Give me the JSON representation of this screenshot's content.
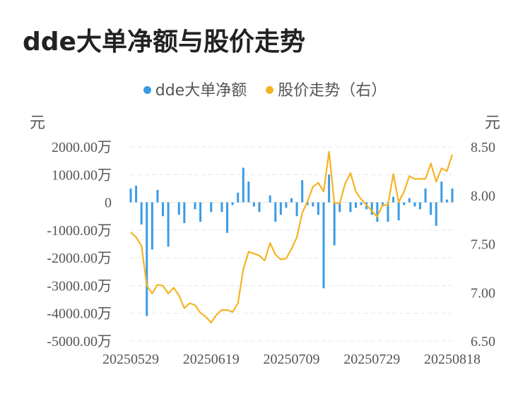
{
  "title": "dde大单净额与股价走势",
  "legend": {
    "left_label": "dde大单净额",
    "right_label": "股价走势（右）"
  },
  "units": {
    "left": "元",
    "right": "元"
  },
  "colors": {
    "bar": "#3a9be6",
    "line": "#f5b324",
    "grid": "#e6e6e6"
  },
  "chart_data": {
    "type": "bar+line",
    "title": "dde大单净额与股价走势",
    "left_axis": {
      "unit": "元",
      "ylim": [
        -5000,
        2000
      ],
      "ticks": [
        2000,
        1000,
        0,
        -1000,
        -2000,
        -3000,
        -4000,
        -5000
      ],
      "tick_labels": [
        "2000.00万",
        "1000.00万",
        "0",
        "-1000.00万",
        "-2000.00万",
        "-3000.00万",
        "-4000.00万",
        "-5000.00万"
      ]
    },
    "right_axis": {
      "unit": "元",
      "ylim": [
        6.5,
        8.5
      ],
      "ticks": [
        8.5,
        8.0,
        7.5,
        7.0,
        6.5
      ],
      "tick_labels": [
        "8.50",
        "8.00",
        "7.50",
        "7.00",
        "6.50"
      ]
    },
    "x_tick_labels": [
      "20250529",
      "20250619",
      "20250709",
      "20250729",
      "20250818"
    ],
    "x_tick_indices": [
      0,
      15,
      30,
      45,
      60
    ],
    "grid": true,
    "legend_position": "top-center",
    "series": [
      {
        "name": "dde大单净额",
        "type": "bar",
        "axis": "left",
        "unit": "万元",
        "values": [
          500,
          600,
          -800,
          -4100,
          -1700,
          450,
          -500,
          -1600,
          0,
          -450,
          -750,
          0,
          -250,
          -700,
          0,
          -350,
          0,
          -350,
          -1100,
          -100,
          350,
          1250,
          750,
          -150,
          -350,
          0,
          250,
          -700,
          -450,
          -200,
          150,
          -500,
          800,
          -100,
          -150,
          -450,
          -3100,
          1000,
          -1550,
          -350,
          0,
          -350,
          -200,
          -100,
          -250,
          -450,
          -700,
          -150,
          -700,
          200,
          -650,
          -100,
          150,
          -150,
          -250,
          500,
          -450,
          -850,
          750,
          100,
          500
        ]
      },
      {
        "name": "股价走势（右）",
        "type": "line",
        "axis": "right",
        "values": [
          7.62,
          7.57,
          7.48,
          7.07,
          6.99,
          7.08,
          7.07,
          6.99,
          7.05,
          6.97,
          6.84,
          6.89,
          6.87,
          6.79,
          6.75,
          6.69,
          6.77,
          6.82,
          6.82,
          6.8,
          6.89,
          7.24,
          7.42,
          7.4,
          7.38,
          7.33,
          7.51,
          7.39,
          7.34,
          7.35,
          7.45,
          7.57,
          7.82,
          7.94,
          8.09,
          8.13,
          8.04,
          8.45,
          7.92,
          7.92,
          8.12,
          8.23,
          8.04,
          7.96,
          7.9,
          7.84,
          7.78,
          7.9,
          7.9,
          8.22,
          7.93,
          8.04,
          8.2,
          8.17,
          8.17,
          8.17,
          8.33,
          8.14,
          8.28,
          8.25,
          8.42
        ]
      }
    ]
  }
}
